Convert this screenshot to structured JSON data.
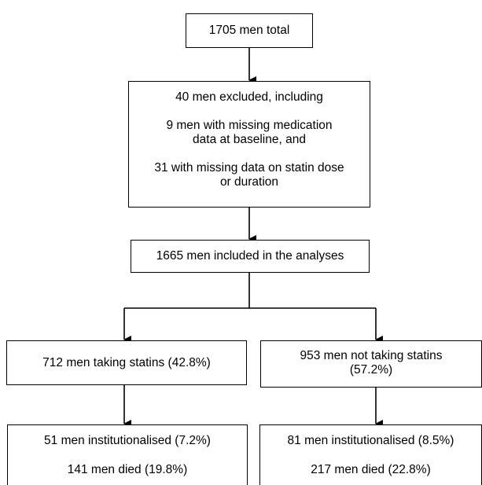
{
  "boxes": {
    "total": "1705 men total",
    "excluded": {
      "line1": "40 men excluded, including",
      "line2": "9 men with missing medication",
      "line3": "data at baseline, and",
      "line4": "31 with missing data on statin dose",
      "line5": "or duration"
    },
    "included": "1665 men included in the analyses",
    "statins": "712 men taking statins (42.8%)",
    "no_statins": {
      "line1": "953 men not taking statins",
      "line2": "(57.2%)"
    },
    "statins_outcome": {
      "institutionalised": "51 men institutionalised (7.2%)",
      "died": "141 men died (19.8%)"
    },
    "no_statins_outcome": {
      "institutionalised": "81 men institutionalised (8.5%)",
      "died": "217 men died (22.8%)"
    }
  }
}
